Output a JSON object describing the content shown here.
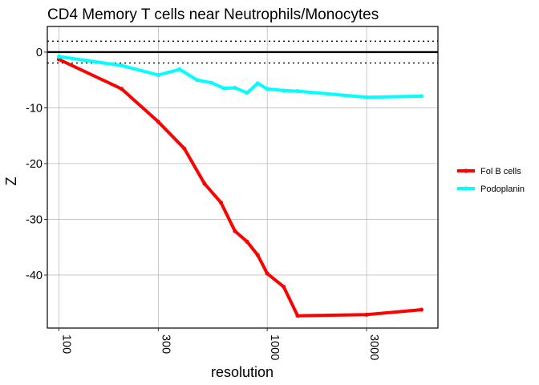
{
  "chart_data": {
    "type": "line",
    "title": "CD4 Memory T cells near Neutrophils/Monocytes",
    "xlabel": "resolution",
    "ylabel": "Z",
    "x_scale": "log",
    "x_ticks": [
      100,
      300,
      1000,
      3000
    ],
    "x_tick_labels": [
      "100",
      "300",
      "1000",
      "3000"
    ],
    "y_ticks": [
      0,
      -10,
      -20,
      -30,
      -40
    ],
    "y_tick_labels": [
      "0",
      "-10",
      "-20",
      "-30",
      "-40"
    ],
    "xlim": [
      88,
      6600
    ],
    "ylim": [
      -49.5,
      4.6
    ],
    "reference_lines": {
      "solid": 0,
      "dotted": [
        1.96,
        -1.96
      ]
    },
    "grid": true,
    "legend_position": "right",
    "series": [
      {
        "name": "Fol B cells",
        "color": "#ff0000",
        "x": [
          100,
          200,
          300,
          400,
          500,
          600,
          700,
          800,
          900,
          1000,
          1200,
          1400,
          3000,
          5500
        ],
        "y": [
          -1.3,
          -6.6,
          -12.5,
          -17.3,
          -23.6,
          -27.0,
          -32.1,
          -34.0,
          -36.4,
          -39.7,
          -42.1,
          -47.3,
          -47.1,
          -46.2
        ]
      },
      {
        "name": "Podoplanin",
        "color": "#00ffff",
        "x": [
          100,
          200,
          300,
          380,
          460,
          540,
          620,
          700,
          800,
          900,
          1000,
          1200,
          1400,
          3000,
          5500
        ],
        "y": [
          -0.8,
          -2.4,
          -4.1,
          -3.1,
          -5.0,
          -5.5,
          -6.5,
          -6.4,
          -7.3,
          -5.6,
          -6.6,
          -6.9,
          -7.0,
          -8.1,
          -7.9
        ]
      }
    ]
  }
}
